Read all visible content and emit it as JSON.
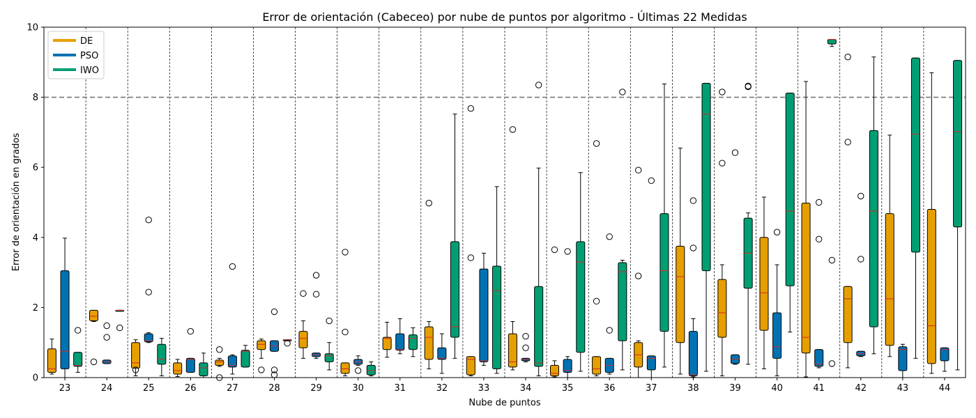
{
  "chart_data": {
    "type": "box",
    "title": "Error de orientación (Cabeceo) por nube de puntos por algoritmo - Últimas 22 Medidas",
    "xlabel": "Nube de puntos",
    "ylabel": "Error de orientación en grados",
    "ylim": [
      0,
      10
    ],
    "yticks": [
      0,
      2,
      4,
      6,
      8,
      10
    ],
    "threshold": 8,
    "grid": "vertical dashed separators between groups",
    "legend_position": "top-left",
    "categories": [
      "23",
      "24",
      "25",
      "26",
      "27",
      "28",
      "29",
      "30",
      "31",
      "32",
      "33",
      "34",
      "35",
      "36",
      "37",
      "38",
      "39",
      "40",
      "41",
      "42",
      "43",
      "44"
    ],
    "series": [
      {
        "name": "DE",
        "color": "#E69F00",
        "boxes": [
          {
            "whislo": 0.1,
            "q1": 0.15,
            "med": 0.25,
            "q3": 0.82,
            "whishi": 1.1,
            "fliers": []
          },
          {
            "whislo": 1.6,
            "q1": 1.62,
            "med": 1.75,
            "q3": 1.92,
            "whishi": 1.92,
            "fliers": [
              0.45
            ]
          },
          {
            "whislo": 0.05,
            "q1": 0.27,
            "med": 0.42,
            "q3": 1.0,
            "whishi": 1.08,
            "fliers": [
              0.22
            ]
          },
          {
            "whislo": 0.03,
            "q1": 0.1,
            "med": 0.2,
            "q3": 0.42,
            "whishi": 0.52,
            "fliers": []
          },
          {
            "whislo": 0.32,
            "q1": 0.35,
            "med": 0.45,
            "q3": 0.5,
            "whishi": 0.55,
            "fliers": [
              0.8,
              0.0
            ]
          },
          {
            "whislo": 0.55,
            "q1": 0.8,
            "med": 0.95,
            "q3": 1.05,
            "whishi": 1.1,
            "fliers": [
              0.22
            ]
          },
          {
            "whislo": 0.55,
            "q1": 0.85,
            "med": 1.12,
            "q3": 1.32,
            "whishi": 1.62,
            "fliers": [
              2.4
            ]
          },
          {
            "whislo": 0.05,
            "q1": 0.12,
            "med": 0.25,
            "q3": 0.42,
            "whishi": 0.42,
            "fliers": [
              3.58,
              1.3
            ]
          },
          {
            "whislo": 0.58,
            "q1": 0.8,
            "med": 1.12,
            "q3": 1.15,
            "whishi": 1.58,
            "fliers": []
          },
          {
            "whislo": 0.25,
            "q1": 0.52,
            "med": 1.15,
            "q3": 1.45,
            "whishi": 1.6,
            "fliers": [
              4.98
            ]
          },
          {
            "whislo": 0.05,
            "q1": 0.08,
            "med": 0.52,
            "q3": 0.6,
            "whishi": 0.6,
            "fliers": [
              7.68,
              3.42
            ]
          },
          {
            "whislo": 0.22,
            "q1": 0.3,
            "med": 0.45,
            "q3": 1.25,
            "whishi": 1.6,
            "fliers": [
              7.08
            ]
          },
          {
            "whislo": 0.02,
            "q1": 0.05,
            "med": 0.12,
            "q3": 0.35,
            "whishi": 0.48,
            "fliers": [
              3.65
            ]
          },
          {
            "whislo": 0.05,
            "q1": 0.1,
            "med": 0.25,
            "q3": 0.6,
            "whishi": 0.6,
            "fliers": [
              6.68,
              2.18
            ]
          },
          {
            "whislo": 0.0,
            "q1": 0.3,
            "med": 0.65,
            "q3": 1.0,
            "whishi": 1.05,
            "fliers": [
              5.92,
              2.9
            ]
          },
          {
            "whislo": 0.1,
            "q1": 1.0,
            "med": 2.88,
            "q3": 3.75,
            "whishi": 6.55,
            "fliers": []
          },
          {
            "whislo": 0.05,
            "q1": 1.15,
            "med": 1.85,
            "q3": 2.8,
            "whishi": 3.22,
            "fliers": [
              8.15,
              6.12
            ]
          },
          {
            "whislo": 0.25,
            "q1": 1.35,
            "med": 2.42,
            "q3": 4.0,
            "whishi": 5.15,
            "fliers": []
          },
          {
            "whislo": 0.02,
            "q1": 0.7,
            "med": 1.15,
            "q3": 4.98,
            "whishi": 8.45,
            "fliers": []
          },
          {
            "whislo": 0.28,
            "q1": 1.0,
            "med": 2.25,
            "q3": 2.6,
            "whishi": 2.6,
            "fliers": [
              9.15,
              6.72
            ]
          },
          {
            "whislo": 0.6,
            "q1": 0.92,
            "med": 2.25,
            "q3": 4.68,
            "whishi": 6.92,
            "fliers": []
          },
          {
            "whislo": 0.12,
            "q1": 0.4,
            "med": 1.48,
            "q3": 4.8,
            "whishi": 8.7,
            "fliers": []
          }
        ]
      },
      {
        "name": "PSO",
        "color": "#0072B2",
        "boxes": [
          {
            "whislo": 0.0,
            "q1": 0.25,
            "med": 0.75,
            "q3": 3.05,
            "whishi": 3.98,
            "fliers": []
          },
          {
            "whislo": 0.4,
            "q1": 0.4,
            "med": 0.45,
            "q3": 0.5,
            "whishi": 0.5,
            "fliers": [
              1.48,
              1.15
            ]
          },
          {
            "whislo": 1.0,
            "q1": 1.02,
            "med": 1.05,
            "q3": 1.25,
            "whishi": 1.28,
            "fliers": [
              4.5,
              2.44
            ]
          },
          {
            "whislo": 0.15,
            "q1": 0.15,
            "med": 0.52,
            "q3": 0.55,
            "whishi": 0.55,
            "fliers": [
              1.32
            ]
          },
          {
            "whislo": 0.1,
            "q1": 0.3,
            "med": 0.35,
            "q3": 0.62,
            "whishi": 0.65,
            "fliers": [
              3.17
            ]
          },
          {
            "whislo": 0.75,
            "q1": 0.75,
            "med": 0.9,
            "q3": 1.05,
            "whishi": 1.05,
            "fliers": [
              1.88,
              0.22,
              0.08
            ]
          },
          {
            "whislo": 0.55,
            "q1": 0.6,
            "med": 0.65,
            "q3": 0.7,
            "whishi": 0.7,
            "fliers": [
              2.92,
              2.38
            ]
          },
          {
            "whislo": 0.35,
            "q1": 0.38,
            "med": 0.45,
            "q3": 0.52,
            "whishi": 0.62,
            "fliers": [
              0.2
            ]
          },
          {
            "whislo": 0.68,
            "q1": 0.78,
            "med": 0.8,
            "q3": 1.25,
            "whishi": 1.68,
            "fliers": []
          },
          {
            "whislo": 0.12,
            "q1": 0.52,
            "med": 0.55,
            "q3": 0.85,
            "whishi": 1.25,
            "fliers": []
          },
          {
            "whislo": 0.35,
            "q1": 0.45,
            "med": 0.48,
            "q3": 3.1,
            "whishi": 3.55,
            "fliers": []
          },
          {
            "whislo": 0.45,
            "q1": 0.48,
            "med": 0.52,
            "q3": 0.55,
            "whishi": 0.55,
            "fliers": [
              1.18,
              0.85
            ]
          },
          {
            "whislo": 0.0,
            "q1": 0.15,
            "med": 0.2,
            "q3": 0.52,
            "whishi": 0.6,
            "fliers": [
              3.6
            ]
          },
          {
            "whislo": 0.1,
            "q1": 0.15,
            "med": 0.35,
            "q3": 0.55,
            "whishi": 0.55,
            "fliers": [
              4.02,
              1.35
            ]
          },
          {
            "whislo": 0.0,
            "q1": 0.22,
            "med": 0.55,
            "q3": 0.62,
            "whishi": 0.62,
            "fliers": [
              5.62
            ]
          },
          {
            "whislo": 0.02,
            "q1": 0.05,
            "med": 0.08,
            "q3": 1.32,
            "whishi": 1.68,
            "fliers": [
              5.05,
              3.7
            ]
          },
          {
            "whislo": 0.38,
            "q1": 0.4,
            "med": 0.52,
            "q3": 0.65,
            "whishi": 0.65,
            "fliers": [
              6.42
            ]
          },
          {
            "whislo": 0.05,
            "q1": 0.55,
            "med": 0.88,
            "q3": 1.85,
            "whishi": 3.22,
            "fliers": [
              4.15
            ]
          },
          {
            "whislo": 0.28,
            "q1": 0.32,
            "med": 0.38,
            "q3": 0.8,
            "whishi": 0.8,
            "fliers": [
              5.0,
              3.95
            ]
          },
          {
            "whislo": 0.6,
            "q1": 0.62,
            "med": 0.68,
            "q3": 0.75,
            "whishi": 0.75,
            "fliers": [
              5.18,
              3.38
            ]
          },
          {
            "whislo": 0.0,
            "q1": 0.2,
            "med": 0.8,
            "q3": 0.88,
            "whishi": 0.95,
            "fliers": []
          },
          {
            "whislo": 0.18,
            "q1": 0.48,
            "med": 0.8,
            "q3": 0.85,
            "whishi": 0.85,
            "fliers": []
          }
        ]
      },
      {
        "name": "IWO",
        "color": "#009E73",
        "boxes": [
          {
            "whislo": 0.15,
            "q1": 0.32,
            "med": 0.35,
            "q3": 0.72,
            "whishi": 0.72,
            "fliers": [
              1.35
            ]
          },
          {
            "whislo": 1.92,
            "q1": 1.92,
            "med": 1.92,
            "q3": 1.92,
            "whishi": 1.92,
            "fliers": [
              1.42
            ]
          },
          {
            "whislo": 0.05,
            "q1": 0.38,
            "med": 0.52,
            "q3": 0.95,
            "whishi": 1.12,
            "fliers": []
          },
          {
            "whislo": 0.0,
            "q1": 0.05,
            "med": 0.28,
            "q3": 0.42,
            "whishi": 0.7,
            "fliers": []
          },
          {
            "whislo": 0.3,
            "q1": 0.3,
            "med": 0.75,
            "q3": 0.78,
            "whishi": 0.92,
            "fliers": []
          },
          {
            "whislo": 1.05,
            "q1": 1.05,
            "med": 1.08,
            "q3": 1.08,
            "whishi": 1.08,
            "fliers": [
              0.98
            ]
          },
          {
            "whislo": 0.22,
            "q1": 0.45,
            "med": 0.62,
            "q3": 0.68,
            "whishi": 1.0,
            "fliers": [
              1.62
            ]
          },
          {
            "whislo": 0.05,
            "q1": 0.08,
            "med": 0.2,
            "q3": 0.35,
            "whishi": 0.45,
            "fliers": []
          },
          {
            "whislo": 0.6,
            "q1": 0.8,
            "med": 1.12,
            "q3": 1.22,
            "whishi": 1.42,
            "fliers": []
          },
          {
            "whislo": 0.55,
            "q1": 1.15,
            "med": 1.45,
            "q3": 3.88,
            "whishi": 7.52,
            "fliers": []
          },
          {
            "whislo": 0.12,
            "q1": 0.25,
            "med": 2.48,
            "q3": 3.18,
            "whishi": 5.45,
            "fliers": []
          },
          {
            "whislo": 0.05,
            "q1": 0.32,
            "med": 0.42,
            "q3": 2.6,
            "whishi": 5.98,
            "fliers": [
              8.35
            ]
          },
          {
            "whislo": 0.18,
            "q1": 0.72,
            "med": 3.3,
            "q3": 3.88,
            "whishi": 5.85,
            "fliers": []
          },
          {
            "whislo": 0.22,
            "q1": 1.05,
            "med": 3.02,
            "q3": 3.28,
            "whishi": 3.35,
            "fliers": [
              8.15
            ]
          },
          {
            "whislo": 0.3,
            "q1": 1.32,
            "med": 3.05,
            "q3": 4.68,
            "whishi": 8.38,
            "fliers": []
          },
          {
            "whislo": 0.18,
            "q1": 3.05,
            "med": 7.52,
            "q3": 8.4,
            "whishi": 8.4,
            "fliers": []
          },
          {
            "whislo": 0.38,
            "q1": 2.55,
            "med": 3.55,
            "q3": 4.55,
            "whishi": 4.7,
            "fliers": [
              8.32,
              8.3
            ]
          },
          {
            "whislo": 1.3,
            "q1": 2.62,
            "med": 4.75,
            "q3": 8.12,
            "whishi": 8.12,
            "fliers": []
          },
          {
            "whislo": 9.45,
            "q1": 9.52,
            "med": 9.65,
            "q3": 9.65,
            "whishi": 9.65,
            "fliers": [
              0.4,
              3.35
            ]
          },
          {
            "whislo": 0.68,
            "q1": 1.45,
            "med": 4.75,
            "q3": 7.05,
            "whishi": 9.15,
            "fliers": []
          },
          {
            "whislo": 0.55,
            "q1": 3.58,
            "med": 6.95,
            "q3": 9.12,
            "whishi": 9.12,
            "fliers": []
          },
          {
            "whislo": 0.22,
            "q1": 4.3,
            "med": 7.02,
            "q3": 9.05,
            "whishi": 9.05,
            "fliers": []
          }
        ]
      }
    ]
  }
}
